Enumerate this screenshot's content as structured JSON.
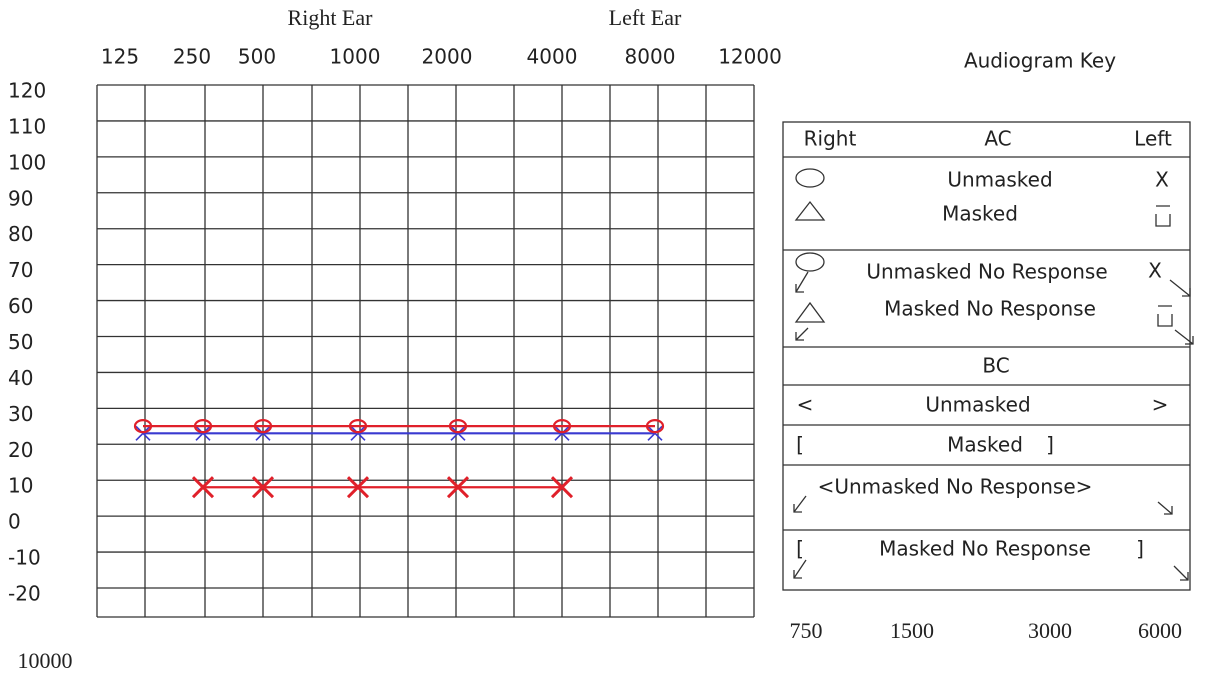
{
  "chart_data": {
    "type": "line",
    "x_group_labels": [
      "Right Ear",
      "Left Ear"
    ],
    "categories": [
      "125",
      "250",
      "500",
      "1000",
      "2000",
      "4000",
      "8000",
      "12000"
    ],
    "secondary_categories": [
      "750",
      "1500",
      "3000",
      "6000"
    ],
    "corner_label": "10000",
    "ylim": [
      -20,
      120
    ],
    "yticks": [
      -20,
      -10,
      0,
      10,
      20,
      30,
      40,
      50,
      60,
      70,
      80,
      90,
      100,
      110,
      120
    ],
    "grid": true,
    "series": [
      {
        "color": "#e0202a",
        "marker": "x",
        "values": [
          null,
          10,
          10,
          10,
          10,
          10,
          null,
          null
        ]
      },
      {
        "color": "#3a3ad0",
        "marker": "x",
        "values": [
          25,
          25,
          25,
          25,
          25,
          25,
          25,
          null
        ]
      },
      {
        "color": "#e0202a",
        "marker": "o",
        "values": [
          27,
          27,
          27,
          27,
          27,
          27,
          27,
          null
        ]
      }
    ]
  },
  "key": {
    "title": "Audiogram Key",
    "ac": {
      "right": "Right",
      "title": "AC",
      "left": "Left"
    },
    "ac_unmasked": {
      "label": "Unmasked",
      "left": "X"
    },
    "ac_masked": {
      "label": "Masked"
    },
    "ac_unmasked_nr": {
      "label": "Unmasked No Response",
      "left": "X"
    },
    "ac_masked_nr": {
      "label": "Masked No Response"
    },
    "bc": {
      "title": "BC"
    },
    "bc_unmasked": {
      "right": "<",
      "label": "Unmasked",
      "left": ">"
    },
    "bc_masked": {
      "right": "[",
      "label": "Masked",
      "left": "]"
    },
    "bc_unmasked_nr": {
      "label": "<Unmasked No Response>"
    },
    "bc_masked_nr": {
      "right": "[",
      "label": "Masked No Response",
      "left": "]"
    }
  }
}
